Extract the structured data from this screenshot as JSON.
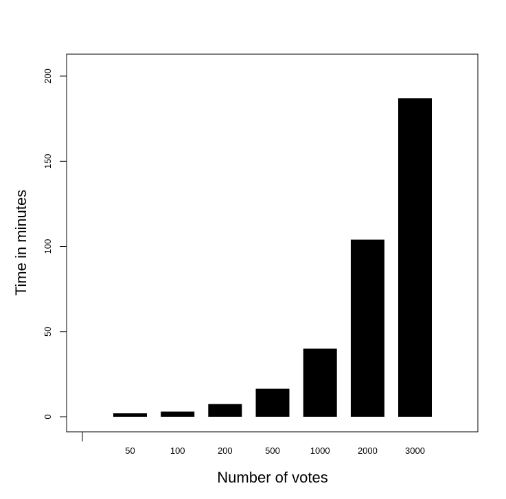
{
  "chart_data": {
    "type": "bar",
    "title": "",
    "xlabel": "Number of votes",
    "ylabel": "Time in minutes",
    "categories": [
      "50",
      "100",
      "200",
      "500",
      "1000",
      "2000",
      "3000"
    ],
    "values": [
      2,
      3,
      7.5,
      16.5,
      40,
      104,
      187
    ],
    "ylim": [
      -9,
      211
    ],
    "yticks": [
      0,
      50,
      100,
      150,
      200
    ],
    "ytick_labels": [
      "0",
      "50",
      "100",
      "150",
      "200"
    ],
    "grid": false,
    "legend": "none",
    "bar_color": "#000000"
  }
}
